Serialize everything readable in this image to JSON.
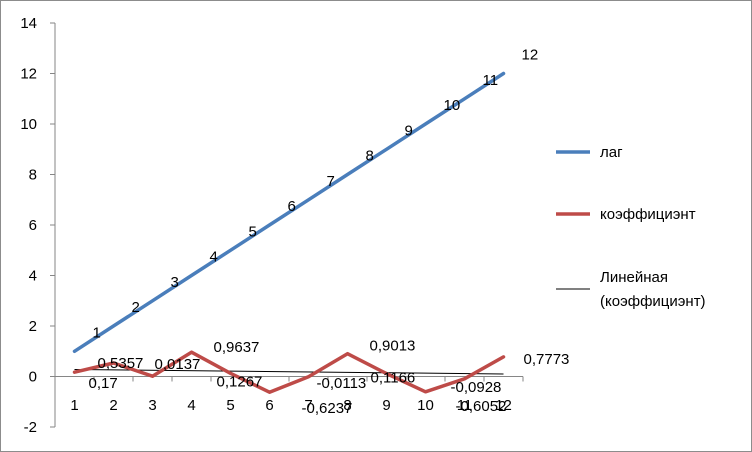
{
  "chart_data": {
    "type": "line",
    "categories": [
      "1",
      "2",
      "3",
      "4",
      "5",
      "6",
      "7",
      "8",
      "9",
      "10",
      "11",
      "12"
    ],
    "ylim": [
      -2,
      14
    ],
    "yticks": [
      "-2",
      "0",
      "2",
      "4",
      "6",
      "8",
      "10",
      "12",
      "14"
    ],
    "grid": false,
    "legend_position": "right",
    "series": [
      {
        "name": "лаг",
        "color": "#4a7ebb",
        "values": [
          1,
          2,
          3,
          4,
          5,
          6,
          7,
          8,
          9,
          10,
          11,
          12
        ],
        "labels": [
          "1",
          "2",
          "3",
          "4",
          "5",
          "6",
          "7",
          "8",
          "9",
          "10",
          "11",
          "12"
        ]
      },
      {
        "name": "коэффициэнт",
        "color": "#be4b48",
        "values": [
          0.17,
          0.5357,
          0.0137,
          0.9637,
          0.1267,
          -0.6237,
          -0.0113,
          0.9013,
          0.1166,
          -0.6052,
          -0.0928,
          0.7773
        ],
        "labels": [
          "0,17",
          "0,5357",
          "0,0137",
          "0,9637",
          "0,1267",
          "-0,6237",
          "-0,0113",
          "0,9013",
          "0,1166",
          "-0,6052",
          "-0,0928",
          "0,7773"
        ]
      }
    ],
    "trendline": {
      "name": "Линейная (коэффициэнт)",
      "name_lines": [
        "Линейная",
        "(коэффициэнт)"
      ],
      "color": "#000000"
    }
  }
}
